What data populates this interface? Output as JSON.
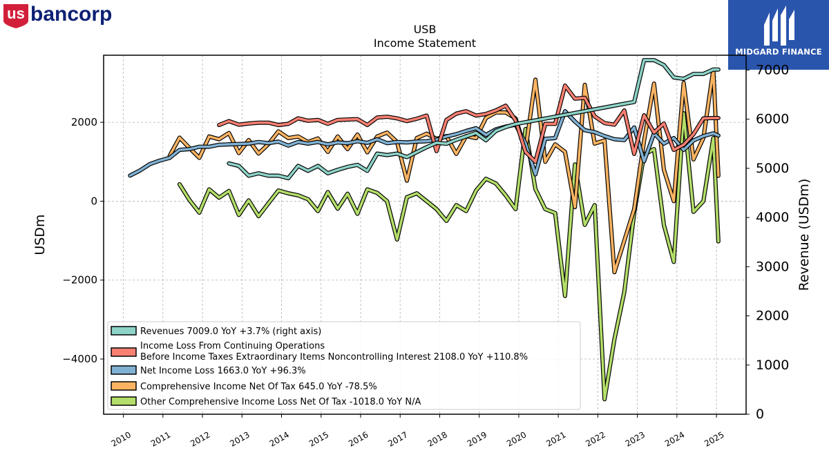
{
  "branding": {
    "company_logo": "usbancorp",
    "company_logo_part1": "us",
    "company_logo_part2": "bancorp",
    "partner_logo": "MIDGARD FINANCE",
    "colors": {
      "usb_red": "#d21f3a",
      "usb_blue": "#0c2074",
      "midgard_blue": "#2a55ad"
    }
  },
  "chart_data": {
    "type": "line",
    "title": "USB",
    "subtitle": "Income Statement",
    "ylabel": "USDm",
    "ylabel_right": "Revenue (USDm)",
    "ylim": [
      -5400,
      3700
    ],
    "ylim_right": [
      0,
      7300
    ],
    "yticks": [
      -4000,
      -2000,
      0,
      2000
    ],
    "yticks_right": [
      0,
      1000,
      2000,
      3000,
      4000,
      5000,
      6000,
      7000
    ],
    "xlim": [
      2009.5,
      2025.75
    ],
    "xticks": [
      "2010",
      "2011",
      "2012",
      "2013",
      "2014",
      "2015",
      "2016",
      "2017",
      "2018",
      "2019",
      "2020",
      "2021",
      "2022",
      "2023",
      "2024",
      "2025"
    ],
    "grid": true,
    "legend_position": "lower-left",
    "series": [
      {
        "name": "Revenues",
        "legend": "Revenues  7009.0 YoY +3.7% (right axis)",
        "axis": "right",
        "color": "#8dd3c7",
        "x": [
          2012.67,
          2012.92,
          2013.17,
          2013.42,
          2013.67,
          2013.92,
          2014.17,
          2014.42,
          2014.67,
          2014.92,
          2015.17,
          2015.42,
          2015.67,
          2015.92,
          2016.17,
          2016.42,
          2016.67,
          2016.92,
          2017.17,
          2017.42,
          2017.67,
          2017.92,
          2018.17,
          2018.42,
          2018.67,
          2018.92,
          2019.17,
          2019.42,
          2019.67,
          2019.92,
          2022.92,
          2023.17,
          2023.42,
          2023.67,
          2023.92,
          2024.17,
          2024.42,
          2024.67,
          2024.92,
          2025.05
        ],
        "y": [
          5100,
          5050,
          4850,
          4900,
          4850,
          4850,
          4800,
          5050,
          4950,
          5050,
          4900,
          4970,
          5030,
          5070,
          4950,
          5300,
          5270,
          5300,
          5230,
          5330,
          5430,
          5520,
          5500,
          5580,
          5650,
          5720,
          5570,
          5760,
          5840,
          5900,
          6350,
          7200,
          7200,
          7100,
          6850,
          6820,
          6920,
          6920,
          7009,
          7009
        ]
      },
      {
        "name": "Income Loss From Continuing Operations Before Income Taxes Extraordinary Items Noncontrolling Interest",
        "legend": "Income Loss From Continuing Operations",
        "legend2": "Before Income Taxes Extraordinary Items Noncontrolling Interest  2108.0 YoY +110.8%",
        "axis": "left",
        "color": "#fb8072",
        "x": [
          2012.42,
          2012.67,
          2012.92,
          2013.17,
          2013.42,
          2013.67,
          2013.92,
          2014.17,
          2014.42,
          2014.67,
          2014.92,
          2015.17,
          2015.42,
          2015.67,
          2015.92,
          2016.17,
          2016.42,
          2016.67,
          2016.92,
          2017.17,
          2017.42,
          2017.67,
          2017.92,
          2018.17,
          2018.42,
          2018.67,
          2018.92,
          2019.17,
          2019.42,
          2019.67,
          2019.92,
          2020.17,
          2020.42,
          2020.67,
          2020.92,
          2021.17,
          2021.42,
          2021.67,
          2021.92,
          2022.17,
          2022.42,
          2022.67,
          2022.92,
          2023.17,
          2023.42,
          2023.67,
          2023.92,
          2024.17,
          2024.42,
          2024.67,
          2024.92,
          2025.05
        ],
        "y": [
          1930,
          2030,
          1940,
          1970,
          1990,
          1990,
          1930,
          1960,
          2100,
          2040,
          2060,
          1960,
          2060,
          2070,
          2080,
          1930,
          2120,
          2140,
          2100,
          2030,
          2090,
          2170,
          1270,
          2060,
          2220,
          2280,
          2170,
          2210,
          2300,
          2420,
          2050,
          1250,
          1000,
          1960,
          1960,
          2930,
          2600,
          2620,
          2150,
          1980,
          1940,
          2300,
          1200,
          2180,
          1740,
          1970,
          1300,
          1430,
          1700,
          2100,
          2108,
          2108
        ]
      },
      {
        "name": "Net Income Loss",
        "legend": "Net Income Loss  1663.0 YoY +96.3%",
        "axis": "left",
        "color": "#80b1d3",
        "x": [
          2010.17,
          2010.42,
          2010.67,
          2010.92,
          2011.17,
          2011.42,
          2011.67,
          2011.92,
          2012.17,
          2012.42,
          2012.67,
          2012.92,
          2013.17,
          2013.42,
          2013.67,
          2013.92,
          2014.17,
          2014.42,
          2014.67,
          2014.92,
          2015.17,
          2015.42,
          2015.67,
          2015.92,
          2016.17,
          2016.42,
          2016.67,
          2016.92,
          2017.17,
          2017.42,
          2017.67,
          2017.92,
          2018.17,
          2018.42,
          2018.67,
          2018.92,
          2019.17,
          2019.42,
          2019.67,
          2019.92,
          2020.17,
          2020.42,
          2020.67,
          2020.92,
          2021.17,
          2021.42,
          2021.67,
          2021.92,
          2022.17,
          2022.42,
          2022.67,
          2022.92,
          2023.17,
          2023.42,
          2023.67,
          2023.92,
          2024.17,
          2024.42,
          2024.67,
          2024.92,
          2025.05
        ],
        "y": [
          650,
          780,
          940,
          1030,
          1100,
          1300,
          1320,
          1380,
          1380,
          1430,
          1440,
          1450,
          1460,
          1500,
          1470,
          1510,
          1410,
          1500,
          1460,
          1500,
          1440,
          1490,
          1470,
          1520,
          1480,
          1570,
          1470,
          1500,
          1490,
          1510,
          1520,
          1560,
          1640,
          1700,
          1780,
          1850,
          1680,
          1820,
          1890,
          1940,
          1470,
          680,
          1580,
          1600,
          2280,
          2020,
          1800,
          1750,
          1650,
          1570,
          1550,
          1870,
          1010,
          1720,
          1460,
          1600,
          1300,
          1540,
          1650,
          1720,
          1663
        ]
      },
      {
        "name": "Comprehensive Income Net Of Tax",
        "legend": "Comprehensive Income Net Of Tax  645.0 YoY -78.5%",
        "axis": "left",
        "color": "#fdb462",
        "x": [
          2011.17,
          2011.42,
          2011.67,
          2011.92,
          2012.17,
          2012.42,
          2012.67,
          2012.92,
          2013.17,
          2013.42,
          2013.67,
          2013.92,
          2014.17,
          2014.42,
          2014.67,
          2014.92,
          2015.17,
          2015.42,
          2015.67,
          2015.92,
          2016.17,
          2016.42,
          2016.67,
          2016.92,
          2017.17,
          2017.42,
          2017.67,
          2017.92,
          2018.17,
          2018.42,
          2018.67,
          2018.92,
          2019.17,
          2019.42,
          2019.67,
          2019.92,
          2020.17,
          2020.42,
          2020.67,
          2020.92,
          2021.17,
          2021.42,
          2021.67,
          2021.92,
          2022.17,
          2022.42,
          2022.67,
          2022.92,
          2023.17,
          2023.42,
          2023.67,
          2023.92,
          2024.17,
          2024.42,
          2024.67,
          2024.92,
          2025.05
        ],
        "y": [
          1150,
          1610,
          1350,
          1100,
          1640,
          1570,
          1730,
          1220,
          1550,
          1210,
          1450,
          1770,
          1600,
          1640,
          1500,
          1590,
          1250,
          1640,
          1320,
          1690,
          1240,
          1640,
          1740,
          1500,
          520,
          1600,
          1710,
          1580,
          1650,
          1200,
          1650,
          1600,
          2110,
          2250,
          2250,
          2100,
          1300,
          3080,
          1000,
          1440,
          1250,
          -150,
          2950,
          1460,
          1540,
          -1800,
          -1000,
          -200,
          1530,
          2980,
          800,
          0,
          3000,
          1060,
          1600,
          3330,
          645
        ]
      },
      {
        "name": "Other Comprehensive Income Loss Net Of Tax",
        "legend": "Other Comprehensive Income Loss Net Of Tax  -1018.0 YoY N/A",
        "axis": "left",
        "color": "#b3de69",
        "x": [
          2011.42,
          2011.67,
          2011.92,
          2012.17,
          2012.42,
          2012.67,
          2012.92,
          2013.17,
          2013.42,
          2013.67,
          2013.92,
          2014.17,
          2014.42,
          2014.67,
          2014.92,
          2015.17,
          2015.42,
          2015.67,
          2015.92,
          2016.17,
          2016.42,
          2016.67,
          2016.92,
          2017.17,
          2017.42,
          2017.67,
          2017.92,
          2018.17,
          2018.42,
          2018.67,
          2018.92,
          2019.17,
          2019.42,
          2019.67,
          2019.92,
          2020.17,
          2020.42,
          2020.67,
          2020.92,
          2021.17,
          2021.42,
          2021.67,
          2021.92,
          2022.17,
          2022.42,
          2022.67,
          2022.92,
          2023.17,
          2023.42,
          2023.67,
          2023.92,
          2024.17,
          2024.42,
          2024.67,
          2024.92,
          2025.05
        ],
        "y": [
          430,
          30,
          -290,
          300,
          90,
          260,
          -350,
          20,
          -380,
          -50,
          270,
          200,
          150,
          50,
          -250,
          230,
          -190,
          190,
          -320,
          300,
          210,
          0,
          -970,
          100,
          200,
          0,
          -200,
          -500,
          -100,
          -250,
          270,
          570,
          450,
          150,
          -200,
          1830,
          310,
          -200,
          -300,
          -2400,
          930,
          -600,
          -100,
          -5020,
          -3500,
          -2300,
          -300,
          1180,
          1320,
          -600,
          -1540,
          2230,
          -270,
          0,
          1600,
          -1018
        ]
      }
    ]
  }
}
